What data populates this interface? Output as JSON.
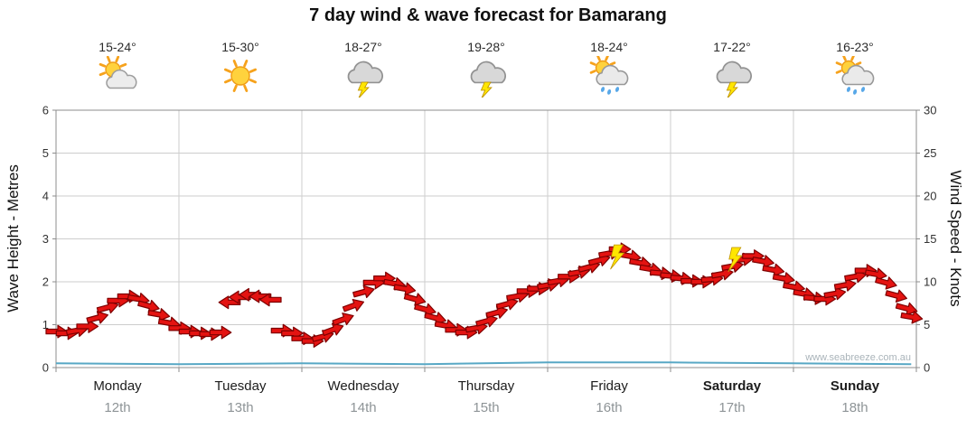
{
  "title": "7 day wind & wave forecast for Bamarang",
  "watermark": "www.seabreeze.com.au",
  "left_axis": {
    "label": "Wave Height - Metres",
    "ticks": [
      0,
      1,
      2,
      3,
      4,
      5,
      6
    ]
  },
  "right_axis": {
    "label": "Wind Speed - Knots",
    "ticks": [
      0,
      5,
      10,
      15,
      20,
      25,
      30
    ]
  },
  "days": [
    {
      "name": "Monday",
      "date": "12th",
      "temp": "15-24°",
      "icon": "partly-cloudy",
      "weekend": false
    },
    {
      "name": "Tuesday",
      "date": "13th",
      "temp": "15-30°",
      "icon": "sunny",
      "weekend": false
    },
    {
      "name": "Wednesday",
      "date": "14th",
      "temp": "18-27°",
      "icon": "storm",
      "weekend": false
    },
    {
      "name": "Thursday",
      "date": "15th",
      "temp": "19-28°",
      "icon": "storm",
      "weekend": false
    },
    {
      "name": "Friday",
      "date": "16th",
      "temp": "18-24°",
      "icon": "partly-cloudy-showers",
      "weekend": false
    },
    {
      "name": "Saturday",
      "date": "17th",
      "temp": "17-22°",
      "icon": "storm",
      "weekend": true
    },
    {
      "name": "Sunday",
      "date": "18th",
      "temp": "16-23°",
      "icon": "partly-cloudy-showers",
      "weekend": true
    }
  ],
  "colors": {
    "arrow_fill": "#e41311",
    "arrow_stroke": "#7e0000",
    "grid": "#cdcdcd",
    "axis": "#8c8c8c",
    "wave_line": "#58a8c5",
    "bolt": "#ffe600",
    "bolt_stroke": "#bf9300",
    "tick_text": "#333333"
  },
  "chart_data": {
    "type": "line",
    "title": "7 day wind & wave forecast for Bamarang",
    "x": {
      "unit": "hours from Monday 00:00",
      "range": [
        0,
        168
      ],
      "day_labels": [
        "Monday 12th",
        "Tuesday 13th",
        "Wednesday 14th",
        "Thursday 15th",
        "Friday 16th",
        "Saturday 17th",
        "Sunday 18th"
      ]
    },
    "y_left": {
      "label": "Wave Height - Metres",
      "range": [
        0,
        6
      ]
    },
    "y_right": {
      "label": "Wind Speed - Knots",
      "range": [
        0,
        30
      ]
    },
    "wind_series": {
      "name": "Wind speed (knots) shown as direction arrows",
      "marker": "arrow",
      "dir_convention": "degrees clockwise from screen-right; 180 = pointing left",
      "points": [
        [
          0,
          4.2,
          0
        ],
        [
          2,
          4,
          0
        ],
        [
          4,
          4.3,
          -10
        ],
        [
          6,
          4.8,
          0
        ],
        [
          8,
          5.8,
          -15
        ],
        [
          10,
          7,
          -15
        ],
        [
          12,
          7.8,
          0
        ],
        [
          14,
          8.3,
          0
        ],
        [
          16,
          8,
          10
        ],
        [
          18,
          7.2,
          15
        ],
        [
          20,
          6.2,
          10
        ],
        [
          22,
          5.2,
          10
        ],
        [
          24,
          4.6,
          0
        ],
        [
          26,
          4.2,
          0
        ],
        [
          28,
          4,
          0
        ],
        [
          30,
          3.9,
          0
        ],
        [
          32,
          4.1,
          0
        ],
        [
          34,
          7.6,
          180
        ],
        [
          36,
          8.2,
          180
        ],
        [
          38,
          8.5,
          180
        ],
        [
          40,
          8.3,
          180
        ],
        [
          42,
          7.9,
          180
        ],
        [
          44,
          4.3,
          0
        ],
        [
          46,
          4,
          0
        ],
        [
          48,
          3.4,
          0
        ],
        [
          50,
          3.1,
          0
        ],
        [
          52,
          3.6,
          -15
        ],
        [
          54,
          4.4,
          -20
        ],
        [
          56,
          5.6,
          -20
        ],
        [
          58,
          7.2,
          -20
        ],
        [
          60,
          8.8,
          -15
        ],
        [
          62,
          9.9,
          0
        ],
        [
          64,
          10.4,
          0
        ],
        [
          66,
          9.8,
          10
        ],
        [
          68,
          9.2,
          10
        ],
        [
          70,
          8,
          15
        ],
        [
          72,
          6.8,
          15
        ],
        [
          74,
          5.8,
          15
        ],
        [
          76,
          4.9,
          10
        ],
        [
          78,
          4.4,
          0
        ],
        [
          80,
          4.1,
          0
        ],
        [
          82,
          4.6,
          -10
        ],
        [
          84,
          5.4,
          -15
        ],
        [
          86,
          6.4,
          -15
        ],
        [
          88,
          7.4,
          -15
        ],
        [
          90,
          8.3,
          -10
        ],
        [
          92,
          8.9,
          0
        ],
        [
          94,
          9.2,
          0
        ],
        [
          96,
          9.6,
          -10
        ],
        [
          98,
          10.1,
          -10
        ],
        [
          100,
          10.6,
          0
        ],
        [
          102,
          11.1,
          -10
        ],
        [
          104,
          11.7,
          -15
        ],
        [
          106,
          12.5,
          -15
        ],
        [
          108,
          13.3,
          -10
        ],
        [
          110,
          13.8,
          0
        ],
        [
          112,
          13,
          10
        ],
        [
          114,
          12.2,
          10
        ],
        [
          116,
          11.5,
          10
        ],
        [
          118,
          11,
          5
        ],
        [
          120,
          10.7,
          5
        ],
        [
          122,
          10.4,
          5
        ],
        [
          124,
          10.1,
          0
        ],
        [
          126,
          10,
          0
        ],
        [
          128,
          10.3,
          -5
        ],
        [
          130,
          10.9,
          -10
        ],
        [
          132,
          11.8,
          -10
        ],
        [
          134,
          12.6,
          -5
        ],
        [
          136,
          13,
          0
        ],
        [
          138,
          12.4,
          10
        ],
        [
          140,
          11.4,
          10
        ],
        [
          142,
          10.4,
          10
        ],
        [
          144,
          9.4,
          10
        ],
        [
          146,
          8.6,
          10
        ],
        [
          148,
          8.1,
          5
        ],
        [
          150,
          8,
          0
        ],
        [
          152,
          8.6,
          -10
        ],
        [
          154,
          9.6,
          -10
        ],
        [
          156,
          10.6,
          -10
        ],
        [
          158,
          11.3,
          0
        ],
        [
          160,
          10.9,
          10
        ],
        [
          162,
          9.9,
          15
        ],
        [
          164,
          8.4,
          15
        ],
        [
          166,
          6.9,
          15
        ],
        [
          167,
          5.9,
          10
        ]
      ]
    },
    "wave_series": {
      "name": "Wave height (metres)",
      "points": [
        [
          0,
          0.1
        ],
        [
          24,
          0.08
        ],
        [
          48,
          0.1
        ],
        [
          72,
          0.08
        ],
        [
          96,
          0.12
        ],
        [
          120,
          0.12
        ],
        [
          144,
          0.1
        ],
        [
          167,
          0.08
        ]
      ]
    },
    "storm_markers": {
      "desc": "lightning symbols drawn on the wind trace",
      "points": [
        [
          109.5,
          14.3
        ],
        [
          132.5,
          14.0
        ]
      ]
    }
  }
}
